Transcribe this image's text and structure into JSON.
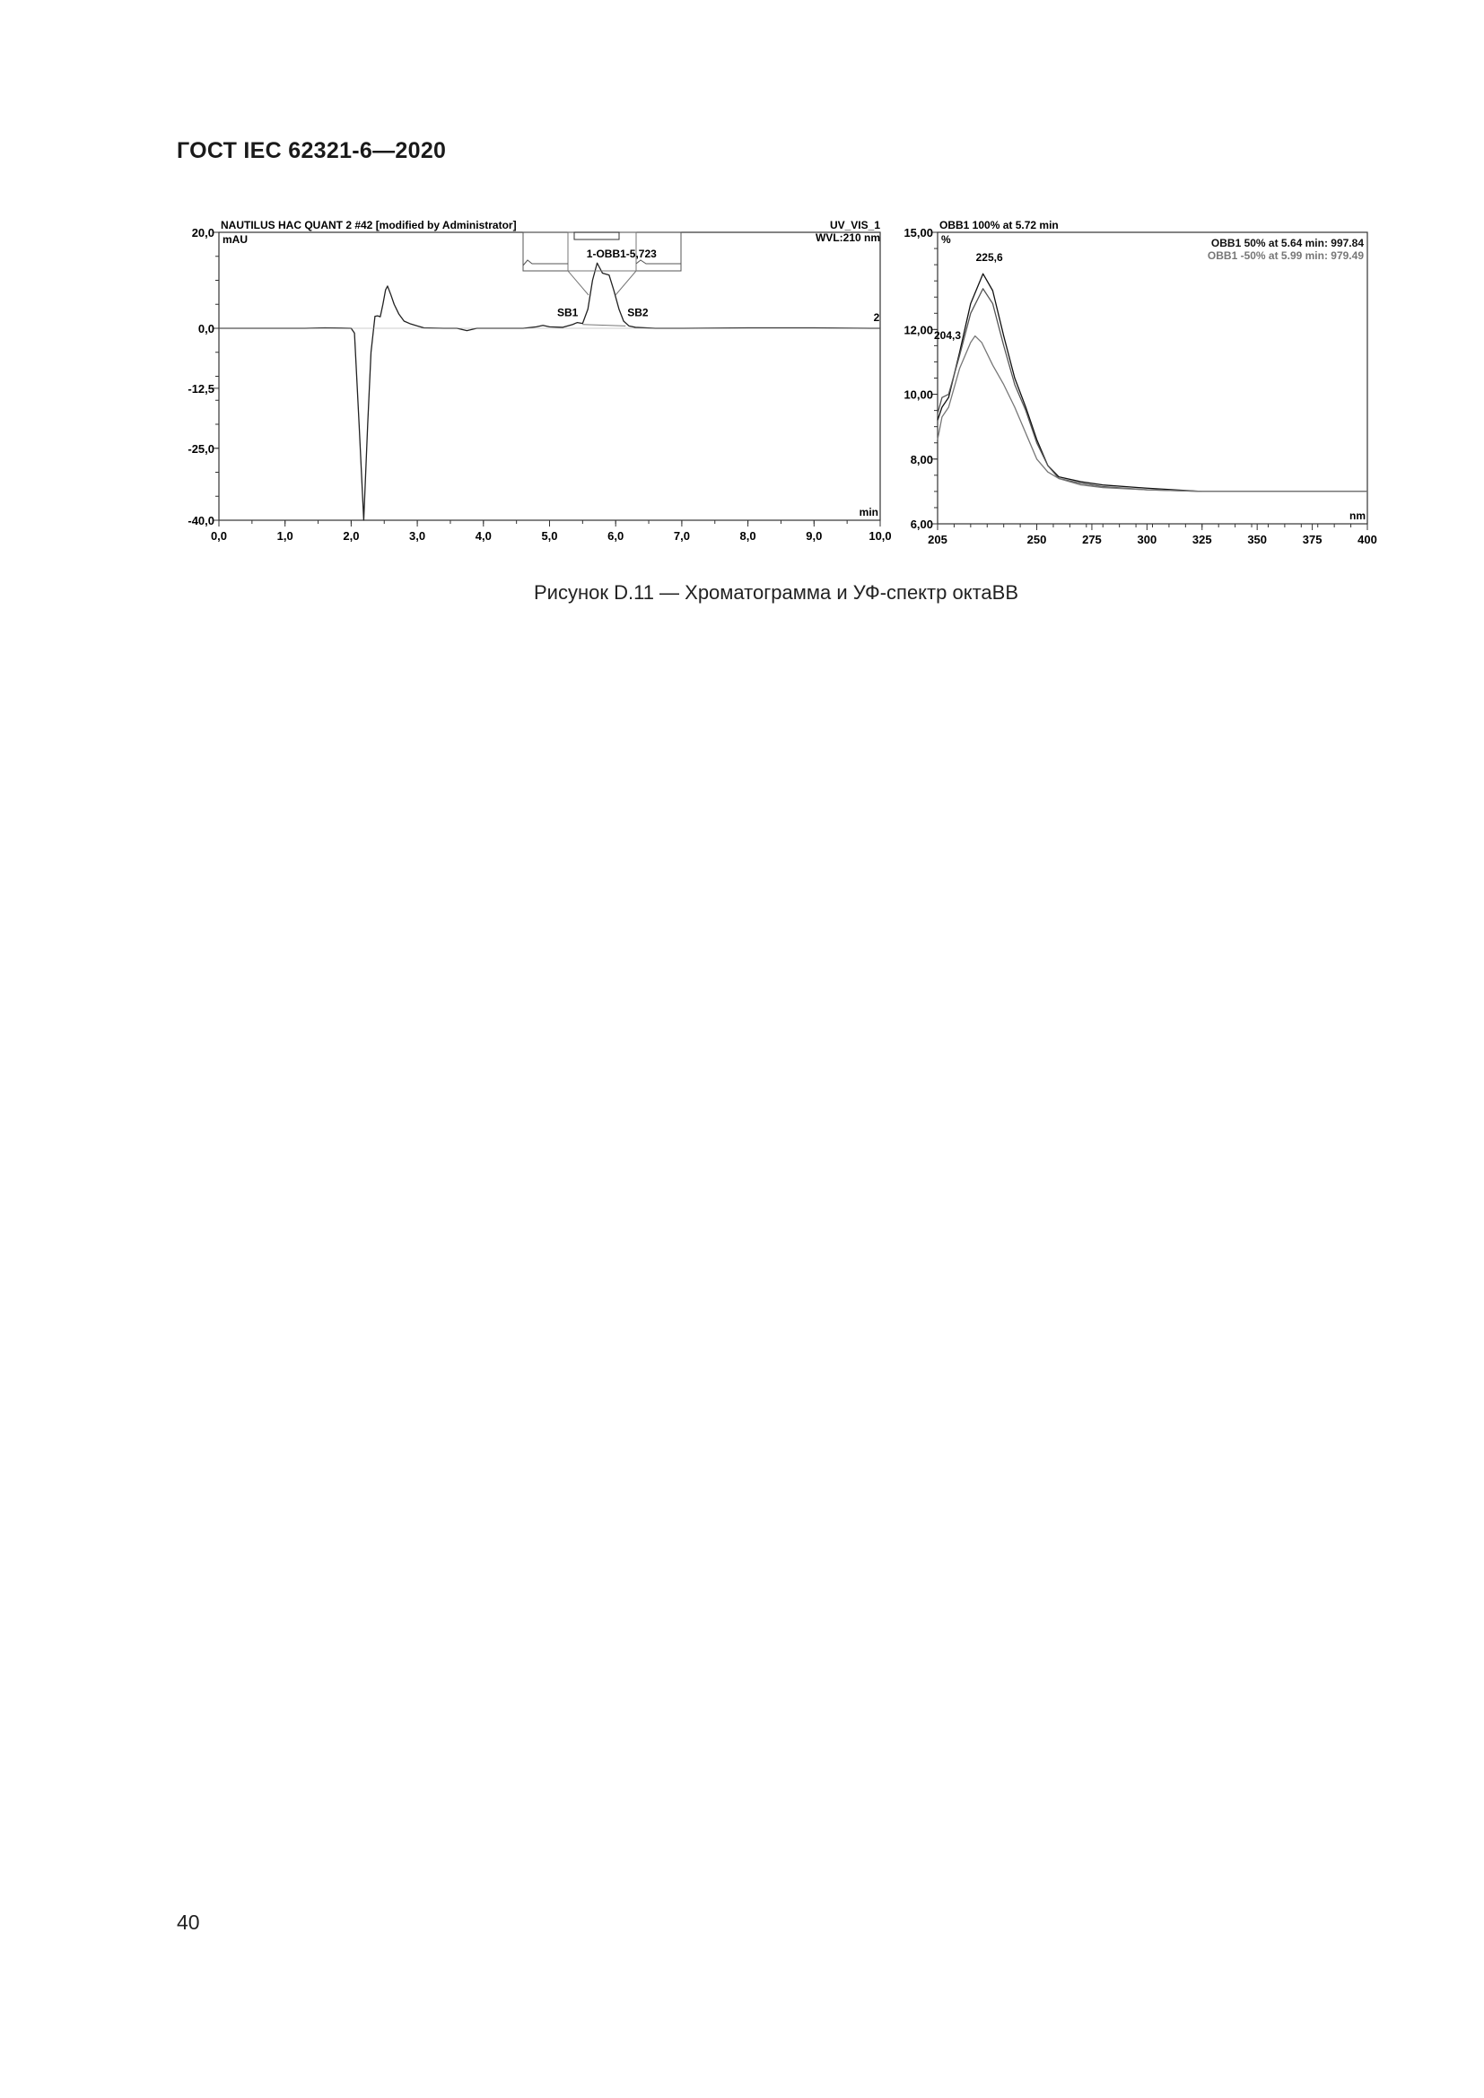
{
  "header": {
    "standard": "ГОСТ IEC 62321-6—2020"
  },
  "caption": "Рисунок D.11 — Хроматограмма и УФ-спектр октаBB",
  "page_number": "40",
  "chart_data": [
    {
      "type": "line",
      "title": "NAUTILUS HAC QUANT 2 #42 [modified by Administrator]",
      "channel": "UV_VIS_1",
      "wavelength": "WVL:210 nm",
      "ylabel": "mAU",
      "xlabel": "min",
      "xlim": [
        0,
        10
      ],
      "ylim": [
        -40,
        20
      ],
      "x_ticks": [
        "0,0",
        "1,0",
        "2,0",
        "3,0",
        "4,0",
        "5,0",
        "6,0",
        "7,0",
        "8,0",
        "9,0",
        "10,0"
      ],
      "y_ticks": [
        {
          "v": 20,
          "label": "20,0"
        },
        {
          "v": 0,
          "label": "0,0"
        },
        {
          "v": -12.5,
          "label": "-12,5"
        },
        {
          "v": -25,
          "label": "-25,0"
        },
        {
          "v": -40,
          "label": "-40,0"
        }
      ],
      "annotations": [
        {
          "text": "1-OBB1-5,723",
          "x": 5.723
        },
        {
          "text": "SB1",
          "x": 5.5
        },
        {
          "text": "SB2",
          "x": 6.15
        },
        {
          "text": "2",
          "x": 9.9
        }
      ],
      "series": [
        {
          "x": [
            0,
            1.3,
            1.6,
            2.0,
            2.05,
            2.12,
            2.19,
            2.25,
            2.3,
            2.36,
            2.4,
            2.44,
            2.48,
            2.52,
            2.55,
            2.6,
            2.65,
            2.72,
            2.8,
            2.9,
            3.0,
            3.1,
            3.4,
            3.6,
            3.75,
            3.9,
            4.2,
            4.6,
            4.8,
            4.9,
            5.0,
            5.2,
            5.35,
            5.42,
            5.5,
            5.58,
            5.65,
            5.72,
            5.8,
            5.9,
            5.97,
            6.05,
            6.12,
            6.2,
            6.3,
            6.6,
            7.0,
            8.0,
            9.0,
            9.85,
            10
          ],
          "y": [
            0,
            0,
            0.1,
            0,
            -1,
            -20,
            -40,
            -20,
            -5,
            2.5,
            2.6,
            2.4,
            5,
            8,
            8.8,
            7,
            5,
            3,
            1.5,
            0.9,
            0.5,
            0.1,
            0,
            0,
            -0.5,
            0,
            0,
            0,
            0.3,
            0.6,
            0.3,
            0.2,
            0.8,
            1.2,
            1.0,
            4,
            10,
            13.6,
            11.5,
            11.1,
            8,
            4,
            1.5,
            0.5,
            0.2,
            0,
            0,
            0.1,
            0.1,
            0,
            0
          ]
        }
      ]
    },
    {
      "type": "line",
      "title": "OBB1    100% at 5.72 min",
      "ylabel": "%",
      "xlabel": "nm",
      "xlim": [
        205,
        400
      ],
      "ylim": [
        6,
        15
      ],
      "x_ticks": [
        "205",
        "250",
        "275",
        "300",
        "325",
        "350",
        "375",
        "400"
      ],
      "x_tick_values": [
        205,
        250,
        275,
        300,
        325,
        350,
        375,
        400
      ],
      "y_ticks": [
        {
          "v": 15,
          "label": "15,00"
        },
        {
          "v": 12,
          "label": "12,00"
        },
        {
          "v": 10,
          "label": "10,00"
        },
        {
          "v": 8,
          "label": "8,00"
        },
        {
          "v": 6,
          "label": "6,00"
        }
      ],
      "legend": [
        "OBB1 50% at 5.64 min:  997.84",
        "OBB1 -50% at 5.99 min:  979.49"
      ],
      "legend_colors": [
        "#111111",
        "#777777"
      ],
      "annotations": [
        {
          "text": "225,6",
          "x": 225.6
        },
        {
          "text": "204,3",
          "x": 204.3
        }
      ],
      "series": [
        {
          "x": [
            205,
            207,
            210,
            215,
            220,
            225.6,
            230,
            235,
            240,
            245,
            250,
            255,
            260,
            270,
            280,
            300,
            325,
            350,
            400
          ],
          "y": [
            9.2,
            9.6,
            9.9,
            11.3,
            12.8,
            13.72,
            13.2,
            11.8,
            10.5,
            9.6,
            8.6,
            7.8,
            7.45,
            7.3,
            7.2,
            7.1,
            7.0,
            7.0,
            7.0
          ],
          "color": "#111111"
        },
        {
          "x": [
            205,
            207,
            210,
            215,
            220,
            225.6,
            230,
            235,
            240,
            245,
            250,
            255,
            260,
            270,
            280,
            300,
            325,
            350,
            400
          ],
          "y": [
            9.4,
            9.9,
            10.0,
            11.2,
            12.5,
            13.26,
            12.8,
            11.5,
            10.3,
            9.5,
            8.5,
            7.8,
            7.4,
            7.25,
            7.15,
            7.05,
            7.0,
            7.0,
            7.0
          ],
          "color": "#555555"
        },
        {
          "x": [
            205,
            207,
            210,
            215,
            220,
            222,
            225,
            230,
            235,
            240,
            245,
            250,
            255,
            260,
            270,
            280,
            300,
            325,
            350,
            400
          ],
          "y": [
            8.6,
            9.3,
            9.6,
            10.8,
            11.6,
            11.8,
            11.6,
            10.9,
            10.3,
            9.6,
            8.8,
            8.0,
            7.6,
            7.4,
            7.2,
            7.12,
            7.05,
            7.0,
            7.0,
            7.0
          ],
          "color": "#777777"
        }
      ]
    }
  ]
}
